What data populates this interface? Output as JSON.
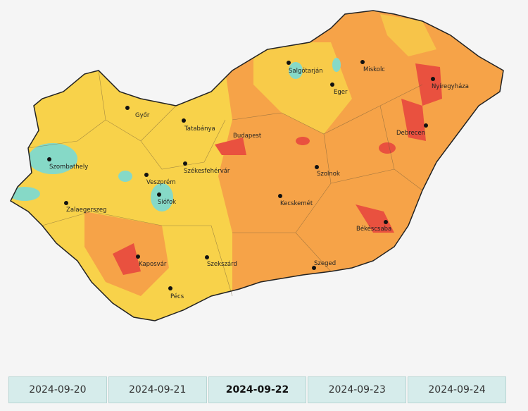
{
  "cities": [
    {
      "label": "Győr"
    },
    {
      "label": "Tatabánya"
    },
    {
      "label": "Budapest"
    },
    {
      "label": "Salgótarján"
    },
    {
      "label": "Miskolc"
    },
    {
      "label": "Eger"
    },
    {
      "label": "Nyíregyháza"
    },
    {
      "label": "Debrecen"
    },
    {
      "label": "Szombathely"
    },
    {
      "label": "Veszprém"
    },
    {
      "label": "Székesfehérvár"
    },
    {
      "label": "Szolnok"
    },
    {
      "label": "Siófok"
    },
    {
      "label": "Zalaegerszeg"
    },
    {
      "label": "Kecskemét"
    },
    {
      "label": "Békéscsaba"
    },
    {
      "label": "Kaposvár"
    },
    {
      "label": "Szekszárd"
    },
    {
      "label": "Szeged"
    },
    {
      "label": "Pécs"
    }
  ],
  "tabs": [
    {
      "label": "2024-09-20",
      "active": false
    },
    {
      "label": "2024-09-21",
      "active": false
    },
    {
      "label": "2024-09-22",
      "active": true
    },
    {
      "label": "2024-09-23",
      "active": false
    },
    {
      "label": "2024-09-24",
      "active": false
    }
  ]
}
